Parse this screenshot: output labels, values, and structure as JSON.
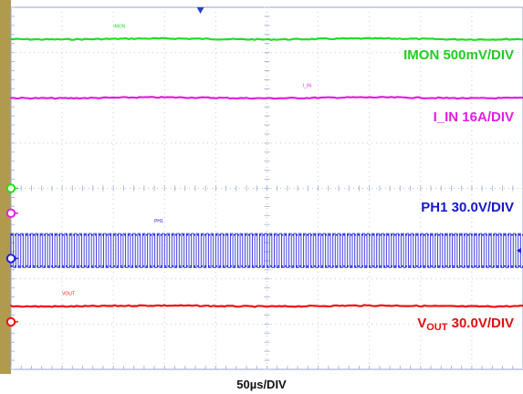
{
  "chart_data": {
    "type": "line",
    "title": "",
    "xlabel": "50µs/DIV",
    "ylabel": "",
    "grid": true,
    "x_divisions": 10,
    "y_divisions": 8,
    "series": [
      {
        "name": "IMON",
        "channel_tag": "IMON",
        "scale": "500mV/DIV",
        "color": "#22dd22",
        "waveform": "dc",
        "level_div": 3.3
      },
      {
        "name": "I_IN",
        "channel_tag": "I_IN",
        "scale": "16A/DIV",
        "color": "#e020e0",
        "waveform": "dc",
        "level_div": 2.0
      },
      {
        "name": "PH1",
        "channel_tag": "PH1",
        "scale": "30.0V/DIV",
        "color": "#2020dd",
        "waveform": "square",
        "level_low_div": -1.75,
        "level_high_div": -1.0,
        "cycles": 105
      },
      {
        "name": "VOUT",
        "channel_tag": "VOUT",
        "scale": "30.0V/DIV",
        "color": "#ee1111",
        "waveform": "dc",
        "level_div": -2.6
      }
    ],
    "channel_labels": {
      "imon": "IMON 500mV/DIV",
      "iin": "I_IN 16A/DIV",
      "ph1": "PH1 30.0V/DIV",
      "vout_v": "V",
      "vout_sub": "OUT",
      "vout_rest": " 30.0V/DIV"
    }
  }
}
